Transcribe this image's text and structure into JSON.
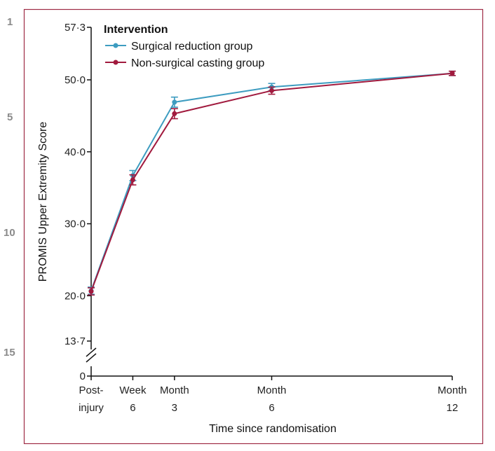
{
  "side_numbers": [
    "1",
    "5",
    "10",
    "15"
  ],
  "colors": {
    "frame": "#9e2b45",
    "series": [
      "#3d9cc0",
      "#a11a3e"
    ]
  },
  "chart_data": {
    "type": "line",
    "xlabel": "Time since randomisation",
    "ylabel": "PROMIS Upper Extremity Score",
    "x": [
      0,
      6,
      12,
      26,
      52
    ],
    "x_unit": "weeks",
    "x_tick_labels": [
      [
        "Post-",
        "injury"
      ],
      [
        "Week",
        "6"
      ],
      [
        "Month",
        "3"
      ],
      [
        "Month",
        "6"
      ],
      [
        "Month",
        "12"
      ]
    ],
    "y_ticks": [
      "0",
      "13·7",
      "20·0",
      "30·0",
      "40·0",
      "50·0",
      "57·3"
    ],
    "y_tick_values": [
      0,
      13.7,
      20.0,
      30.0,
      40.0,
      50.0,
      57.3
    ],
    "y_axis_break": [
      0,
      13.7
    ],
    "ylim": [
      13.7,
      57.3
    ],
    "legend_title": "Intervention",
    "legend_position": "top-left",
    "grid": false,
    "series": [
      {
        "name": "Surgical reduction group",
        "values": [
          20.7,
          36.7,
          46.9,
          49.0,
          50.9
        ],
        "error": [
          0.5,
          0.7,
          0.7,
          0.5,
          0.3
        ]
      },
      {
        "name": "Non-surgical casting group",
        "values": [
          20.6,
          36.1,
          45.3,
          48.5,
          50.9
        ],
        "error": [
          0.5,
          0.7,
          0.7,
          0.5,
          0.3
        ]
      }
    ]
  }
}
